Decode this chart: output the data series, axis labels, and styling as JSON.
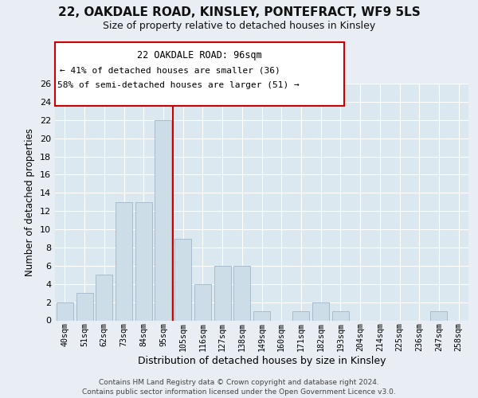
{
  "title": "22, OAKDALE ROAD, KINSLEY, PONTEFRACT, WF9 5LS",
  "subtitle": "Size of property relative to detached houses in Kinsley",
  "xlabel": "Distribution of detached houses by size in Kinsley",
  "ylabel": "Number of detached properties",
  "bar_labels": [
    "40sqm",
    "51sqm",
    "62sqm",
    "73sqm",
    "84sqm",
    "95sqm",
    "105sqm",
    "116sqm",
    "127sqm",
    "138sqm",
    "149sqm",
    "160sqm",
    "171sqm",
    "182sqm",
    "193sqm",
    "204sqm",
    "214sqm",
    "225sqm",
    "236sqm",
    "247sqm",
    "258sqm"
  ],
  "bar_values": [
    2,
    3,
    5,
    13,
    13,
    22,
    9,
    4,
    6,
    6,
    1,
    0,
    1,
    2,
    1,
    0,
    0,
    0,
    0,
    1,
    0
  ],
  "bar_color": "#ccdde8",
  "bar_edge_color": "#aabccc",
  "vline_color": "#cc0000",
  "ylim": [
    0,
    26
  ],
  "yticks": [
    0,
    2,
    4,
    6,
    8,
    10,
    12,
    14,
    16,
    18,
    20,
    22,
    24,
    26
  ],
  "annotation_title": "22 OAKDALE ROAD: 96sqm",
  "annotation_line1": "← 41% of detached houses are smaller (36)",
  "annotation_line2": "58% of semi-detached houses are larger (51) →",
  "annotation_box_color": "#ffffff",
  "annotation_box_edge": "#cc0000",
  "footer_line1": "Contains HM Land Registry data © Crown copyright and database right 2024.",
  "footer_line2": "Contains public sector information licensed under the Open Government Licence v3.0.",
  "background_color": "#e8eef4",
  "plot_bg_color": "#dce8f0",
  "grid_color": "#ffffff"
}
